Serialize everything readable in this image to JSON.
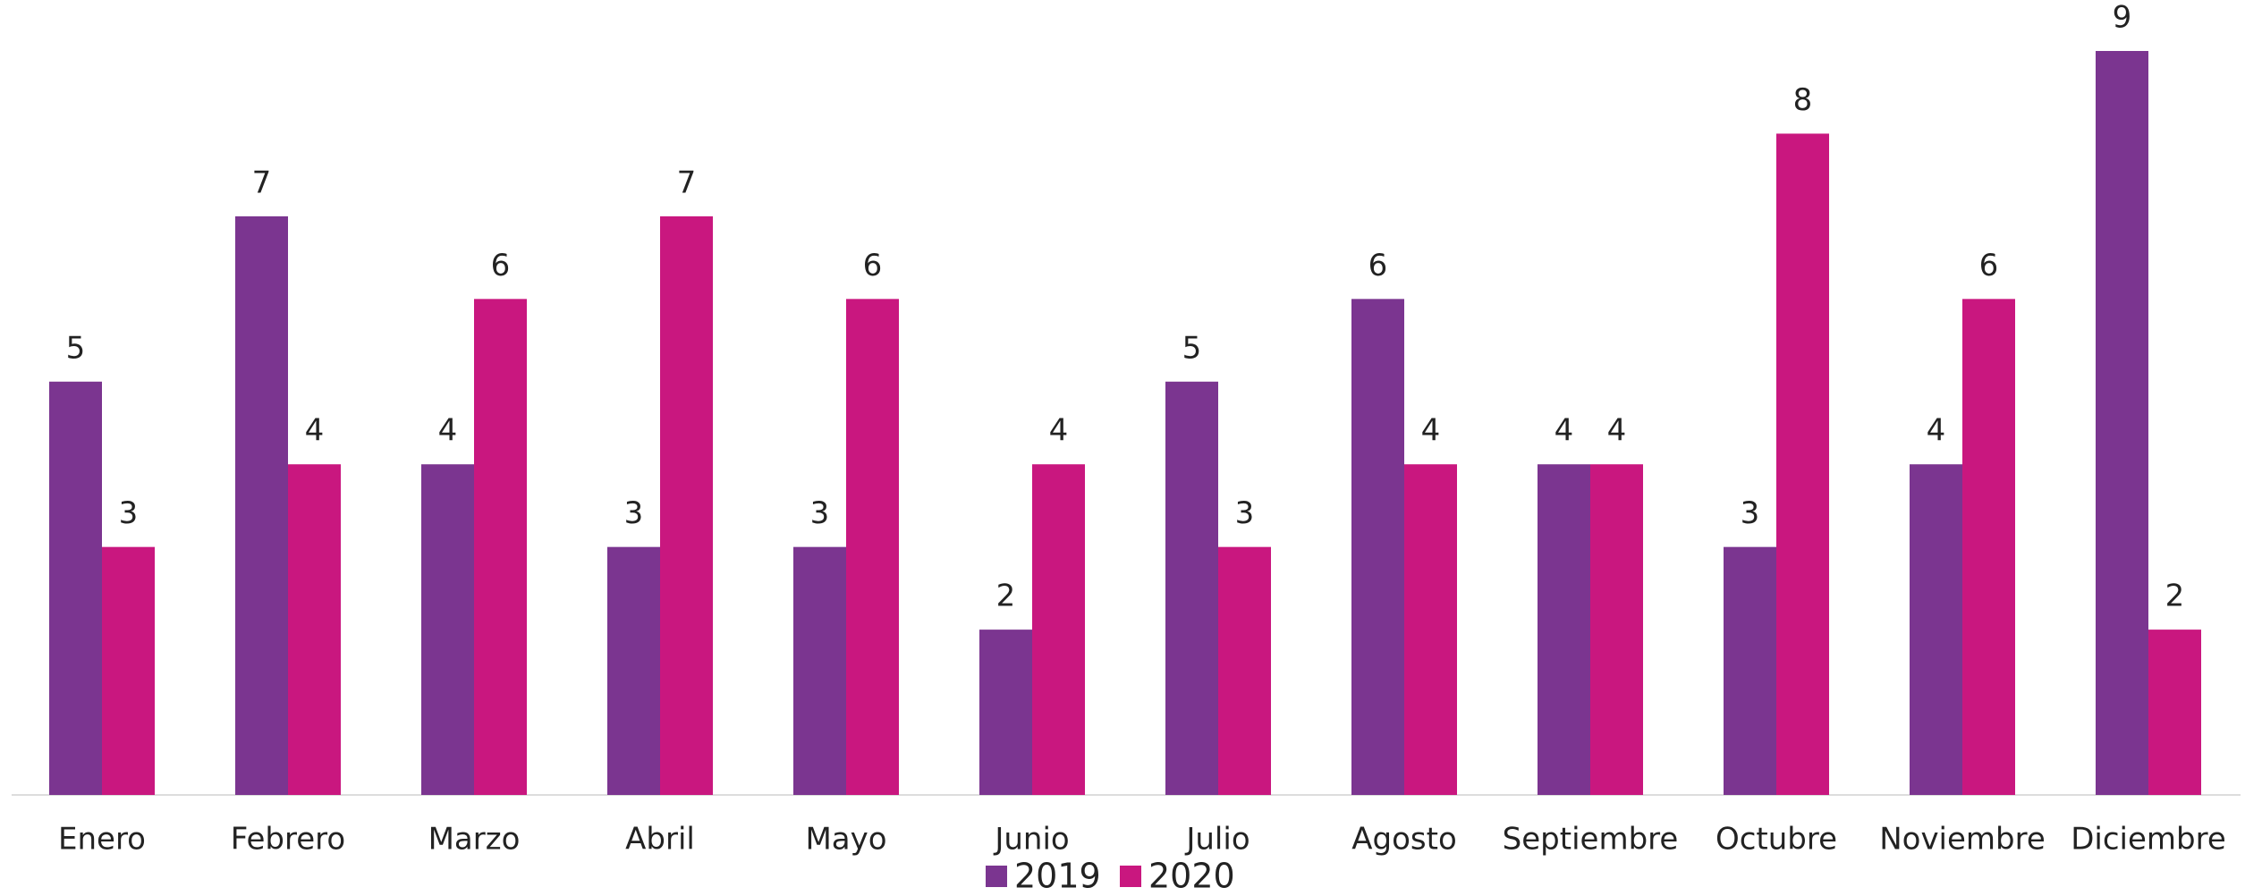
{
  "chart_data": {
    "type": "bar",
    "categories": [
      "Enero",
      "Febrero",
      "Marzo",
      "Abril",
      "Mayo",
      "Junio",
      "Julio",
      "Agosto",
      "Septiembre",
      "Octubre",
      "Noviembre",
      "Diciembre"
    ],
    "series": [
      {
        "name": "2019",
        "color": "#7b3590",
        "values": [
          5,
          7,
          4,
          3,
          3,
          2,
          5,
          6,
          4,
          3,
          4,
          9
        ]
      },
      {
        "name": "2020",
        "color": "#c9177f",
        "values": [
          3,
          4,
          6,
          7,
          6,
          4,
          3,
          4,
          4,
          8,
          6,
          2
        ]
      }
    ],
    "legend": "bottom"
  }
}
